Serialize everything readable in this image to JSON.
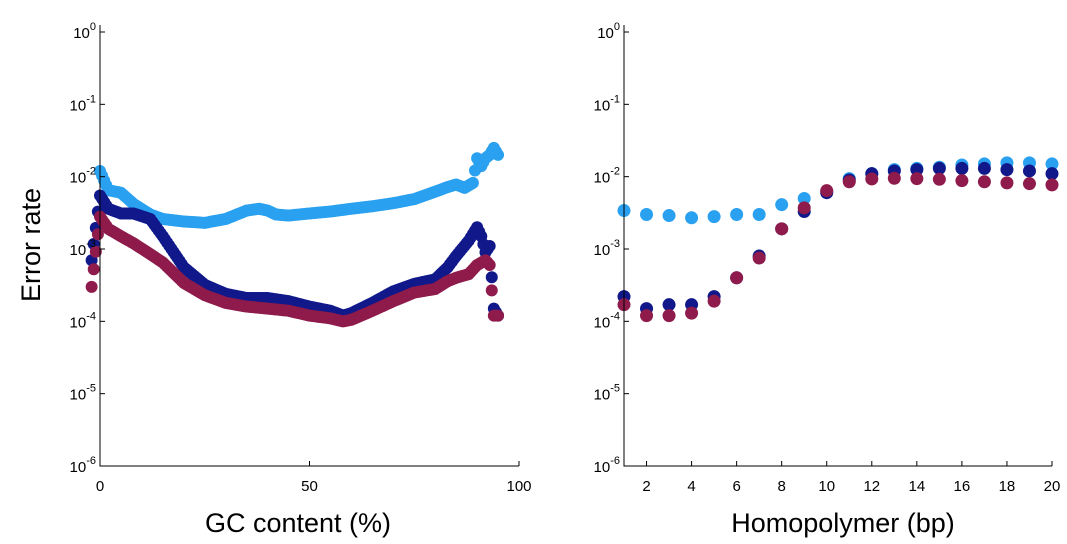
{
  "colors": {
    "series_a": "#2aa1f0",
    "series_b": "#10188a",
    "series_c": "#8e1b4b"
  },
  "chart_data": [
    {
      "type": "scatter",
      "title": "",
      "xlabel": "GC content (%)",
      "ylabel": "Error rate",
      "yscale": "log",
      "xlim": [
        0,
        100
      ],
      "ylim": [
        1e-06,
        1
      ],
      "x_ticks": [
        0,
        50,
        100
      ],
      "y_ticks": [
        {
          "base": "10",
          "exp": "0",
          "value": 1
        },
        {
          "base": "10",
          "exp": "-1",
          "value": 0.1
        },
        {
          "base": "10",
          "exp": "-2",
          "value": 0.01
        },
        {
          "base": "10",
          "exp": "-3",
          "value": 0.001
        },
        {
          "base": "10",
          "exp": "-4",
          "value": 0.0001
        },
        {
          "base": "10",
          "exp": "-5",
          "value": 1e-05
        },
        {
          "base": "10",
          "exp": "-6",
          "value": 1e-06
        }
      ],
      "grid": false,
      "series": [
        {
          "color_key": "series_a",
          "x": [
            0,
            2,
            5,
            8,
            12,
            15,
            20,
            25,
            30,
            35,
            38,
            40,
            42,
            45,
            50,
            55,
            60,
            65,
            70,
            75,
            80,
            83,
            85,
            87,
            89,
            90,
            91,
            92,
            93,
            94,
            95
          ],
          "y": [
            0.012,
            0.0065,
            0.006,
            0.0042,
            0.003,
            0.0026,
            0.0024,
            0.0023,
            0.0026,
            0.0034,
            0.0036,
            0.0034,
            0.003,
            0.0029,
            0.0031,
            0.0033,
            0.0036,
            0.0039,
            0.0043,
            0.0049,
            0.0062,
            0.0072,
            0.0078,
            0.007,
            0.0082,
            0.018,
            0.014,
            0.018,
            0.02,
            0.025,
            0.02
          ]
        },
        {
          "color_key": "series_b",
          "x": [
            -2,
            0,
            2,
            5,
            8,
            12,
            15,
            20,
            25,
            30,
            35,
            40,
            45,
            50,
            55,
            58,
            60,
            65,
            70,
            75,
            80,
            83,
            85,
            88,
            90,
            91,
            92,
            93,
            94,
            95
          ],
          "y": [
            0.0007,
            0.0055,
            0.0036,
            0.0031,
            0.0031,
            0.0026,
            0.0015,
            0.00056,
            0.00032,
            0.00024,
            0.00021,
            0.00021,
            0.00019,
            0.00016,
            0.00014,
            0.00012,
            0.00013,
            0.00018,
            0.00026,
            0.00033,
            0.00038,
            0.00056,
            0.0008,
            0.0013,
            0.002,
            0.0015,
            0.0009,
            0.0011,
            0.00015,
            0.00012
          ]
        },
        {
          "color_key": "series_c",
          "x": [
            -2,
            0,
            2,
            5,
            8,
            12,
            15,
            20,
            25,
            30,
            35,
            40,
            45,
            50,
            55,
            58,
            60,
            65,
            70,
            75,
            80,
            83,
            85,
            88,
            90,
            92,
            93,
            94,
            95
          ],
          "y": [
            0.0003,
            0.0028,
            0.0019,
            0.0015,
            0.0012,
            0.00085,
            0.00065,
            0.00034,
            0.00023,
            0.00018,
            0.00016,
            0.00015,
            0.00014,
            0.00012,
            0.00011,
            0.0001,
            0.000105,
            0.00014,
            0.00019,
            0.00025,
            0.00028,
            0.00036,
            0.0004,
            0.00045,
            0.0006,
            0.0007,
            0.0006,
            0.00012,
            0.00012
          ]
        }
      ]
    },
    {
      "type": "scatter",
      "title": "",
      "xlabel": "Homopolymer (bp)",
      "ylabel": "",
      "yscale": "log",
      "xlim": [
        1,
        20
      ],
      "ylim": [
        1e-06,
        1
      ],
      "x_ticks": [
        2,
        4,
        6,
        8,
        10,
        12,
        14,
        16,
        18,
        20
      ],
      "y_ticks": [
        {
          "base": "10",
          "exp": "0",
          "value": 1
        },
        {
          "base": "10",
          "exp": "-1",
          "value": 0.1
        },
        {
          "base": "10",
          "exp": "-2",
          "value": 0.01
        },
        {
          "base": "10",
          "exp": "-3",
          "value": 0.001
        },
        {
          "base": "10",
          "exp": "-4",
          "value": 0.0001
        },
        {
          "base": "10",
          "exp": "-5",
          "value": 1e-05
        },
        {
          "base": "10",
          "exp": "-6",
          "value": 1e-06
        }
      ],
      "grid": false,
      "series": [
        {
          "color_key": "series_a",
          "x": [
            1,
            2,
            3,
            4,
            5,
            6,
            7,
            8,
            9,
            10,
            11,
            12,
            13,
            14,
            15,
            16,
            17,
            18,
            19,
            20
          ],
          "y": [
            0.0034,
            0.003,
            0.0029,
            0.0027,
            0.0028,
            0.003,
            0.003,
            0.0041,
            0.005,
            0.0062,
            0.0094,
            0.011,
            0.0125,
            0.013,
            0.0135,
            0.0145,
            0.015,
            0.0155,
            0.0155,
            0.015
          ]
        },
        {
          "color_key": "series_b",
          "x": [
            1,
            2,
            3,
            4,
            5,
            6,
            7,
            8,
            9,
            10,
            11,
            12,
            13,
            14,
            15,
            16,
            17,
            18,
            19,
            20
          ],
          "y": [
            0.00022,
            0.00015,
            0.00017,
            0.00017,
            0.00022,
            0.0004,
            0.0008,
            0.0019,
            0.0033,
            0.006,
            0.009,
            0.011,
            0.012,
            0.0125,
            0.013,
            0.013,
            0.013,
            0.0125,
            0.012,
            0.011
          ]
        },
        {
          "color_key": "series_c",
          "x": [
            1,
            2,
            3,
            4,
            5,
            6,
            7,
            8,
            9,
            10,
            11,
            12,
            13,
            14,
            15,
            16,
            17,
            18,
            19,
            20
          ],
          "y": [
            0.00017,
            0.00012,
            0.00012,
            0.00013,
            0.00019,
            0.0004,
            0.00075,
            0.0019,
            0.0037,
            0.0064,
            0.0085,
            0.0093,
            0.0095,
            0.0094,
            0.0092,
            0.0088,
            0.0085,
            0.0082,
            0.008,
            0.0077
          ]
        }
      ]
    }
  ]
}
